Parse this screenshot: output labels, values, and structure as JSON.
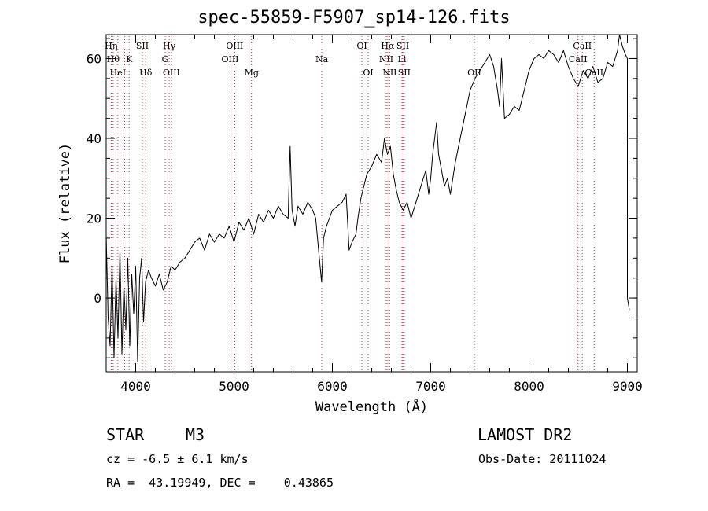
{
  "chart_data": {
    "type": "line",
    "title": "spec-55859-F5907_sp14-126.fits",
    "xlabel": "Wavelength (Å)",
    "ylabel": "Flux (relative)",
    "xlim": [
      3700,
      9100
    ],
    "ylim": [
      -18.5,
      66
    ],
    "xticks": [
      4000,
      5000,
      6000,
      7000,
      8000,
      9000
    ],
    "yticks": [
      0,
      20,
      40,
      60
    ],
    "series": [
      {
        "name": "flux",
        "x": [
          3700,
          3720,
          3740,
          3760,
          3780,
          3800,
          3820,
          3840,
          3860,
          3880,
          3900,
          3920,
          3940,
          3960,
          3980,
          4000,
          4020,
          4040,
          4060,
          4080,
          4100,
          4130,
          4160,
          4200,
          4240,
          4280,
          4320,
          4360,
          4400,
          4450,
          4500,
          4550,
          4600,
          4650,
          4700,
          4750,
          4800,
          4850,
          4900,
          4950,
          5000,
          5050,
          5100,
          5150,
          5200,
          5250,
          5300,
          5350,
          5400,
          5450,
          5500,
          5550,
          5570,
          5590,
          5620,
          5650,
          5700,
          5750,
          5800,
          5830,
          5860,
          5890,
          5910,
          5940,
          5970,
          6000,
          6050,
          6100,
          6140,
          6170,
          6200,
          6240,
          6260,
          6290,
          6320,
          6350,
          6400,
          6450,
          6500,
          6530,
          6560,
          6590,
          6620,
          6650,
          6680,
          6720,
          6760,
          6800,
          6850,
          6900,
          6950,
          6980,
          7000,
          7020,
          7040,
          7060,
          7080,
          7110,
          7140,
          7170,
          7200,
          7250,
          7300,
          7350,
          7400,
          7450,
          7500,
          7550,
          7600,
          7640,
          7660,
          7680,
          7700,
          7720,
          7750,
          7800,
          7850,
          7900,
          7950,
          8000,
          8050,
          8100,
          8150,
          8200,
          8250,
          8300,
          8350,
          8400,
          8450,
          8500,
          8550,
          8600,
          8650,
          8700,
          8750,
          8800,
          8850,
          8900,
          8920,
          8950,
          8980,
          9000,
          9000,
          9020
        ],
        "y": [
          16,
          -5,
          -12,
          8,
          -15,
          5,
          -10,
          12,
          -14,
          3,
          -8,
          10,
          -12,
          6,
          -4,
          8,
          -16,
          5,
          10,
          -6,
          4,
          7,
          5,
          3,
          6,
          2,
          4,
          8,
          7,
          9,
          10,
          12,
          14,
          15,
          12,
          16,
          14,
          16,
          15,
          18,
          14,
          19,
          17,
          20,
          16,
          21,
          19,
          22,
          20,
          23,
          21,
          20,
          38,
          22,
          18,
          23,
          21,
          24,
          22,
          20,
          12,
          4,
          15,
          18,
          20,
          22,
          23,
          24,
          26,
          12,
          14,
          16,
          20,
          25,
          28,
          31,
          33,
          36,
          34,
          40,
          36,
          38,
          31,
          27,
          24,
          22,
          24,
          20,
          24,
          28,
          32,
          26,
          30,
          36,
          40,
          44,
          36,
          32,
          28,
          30,
          26,
          34,
          40,
          46,
          52,
          55,
          57,
          59,
          61,
          58,
          55,
          52,
          48,
          60,
          45,
          46,
          48,
          47,
          52,
          57,
          60,
          61,
          60,
          62,
          61,
          59,
          62,
          58,
          55,
          53,
          57,
          55,
          58,
          54,
          55,
          59,
          58,
          62,
          67,
          63,
          61,
          60,
          0,
          -3
        ]
      }
    ],
    "lines": [
      {
        "x": 3751,
        "row": 0,
        "label": "Hη"
      },
      {
        "x": 3771,
        "row": 1,
        "label": "Hθ"
      },
      {
        "x": 3819,
        "row": 2,
        "label": "HeI"
      },
      {
        "x": 3889,
        "row": 2,
        "label": ""
      },
      {
        "x": 3934,
        "row": 1,
        "label": "K"
      },
      {
        "x": 4068,
        "row": 0,
        "label": "SII"
      },
      {
        "x": 4102,
        "row": 2,
        "label": "Hδ"
      },
      {
        "x": 4300,
        "row": 1,
        "label": "G"
      },
      {
        "x": 4341,
        "row": 0,
        "label": "Hγ"
      },
      {
        "x": 4363,
        "row": 2,
        "label": "OIII"
      },
      {
        "x": 4960,
        "row": 1,
        "label": "OIII"
      },
      {
        "x": 5007,
        "row": 0,
        "label": "OIII"
      },
      {
        "x": 5178,
        "row": 2,
        "label": "Mg"
      },
      {
        "x": 5893,
        "row": 1,
        "label": "Na"
      },
      {
        "x": 6300,
        "row": 0,
        "label": "OI"
      },
      {
        "x": 6364,
        "row": 2,
        "label": "OI"
      },
      {
        "x": 6548,
        "row": 1,
        "label": "NII"
      },
      {
        "x": 6563,
        "row": 0,
        "label": "Hα"
      },
      {
        "x": 6583,
        "row": 2,
        "label": "NII"
      },
      {
        "x": 6708,
        "row": 1,
        "label": "Li"
      },
      {
        "x": 6717,
        "row": 0,
        "label": "SII"
      },
      {
        "x": 6731,
        "row": 2,
        "label": "SII"
      },
      {
        "x": 7444,
        "row": 2,
        "label": "OII"
      },
      {
        "x": 8498,
        "row": 1,
        "label": "CaII"
      },
      {
        "x": 8542,
        "row": 0,
        "label": "CaII"
      },
      {
        "x": 8662,
        "row": 2,
        "label": "CaII"
      }
    ]
  },
  "info": {
    "class": "STAR",
    "subclass": "M3",
    "survey": "LAMOST DR2",
    "cz": "cz = -6.5 ± 6.1 km/s",
    "obsdate": "Obs-Date: 20111024",
    "radec": "RA =  43.19949, DEC =    0.43865"
  }
}
